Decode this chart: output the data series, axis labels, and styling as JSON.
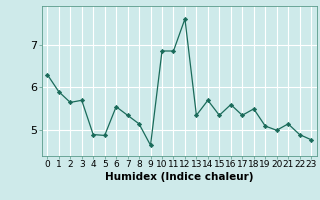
{
  "x": [
    0,
    1,
    2,
    3,
    4,
    5,
    6,
    7,
    8,
    9,
    10,
    11,
    12,
    13,
    14,
    15,
    16,
    17,
    18,
    19,
    20,
    21,
    22,
    23
  ],
  "y": [
    6.3,
    5.9,
    5.65,
    5.7,
    4.9,
    4.88,
    5.55,
    5.35,
    5.15,
    4.65,
    6.85,
    6.85,
    7.6,
    5.35,
    5.7,
    5.35,
    5.6,
    5.35,
    5.5,
    5.1,
    5.0,
    5.15,
    4.9,
    4.78
  ],
  "line_color": "#1a6b5a",
  "marker": "D",
  "marker_size": 2.2,
  "bg_color": "#ceeaea",
  "grid_color": "#ffffff",
  "xlabel": "Humidex (Indice chaleur)",
  "yticks": [
    5,
    6,
    7
  ],
  "xticks": [
    0,
    1,
    2,
    3,
    4,
    5,
    6,
    7,
    8,
    9,
    10,
    11,
    12,
    13,
    14,
    15,
    16,
    17,
    18,
    19,
    20,
    21,
    22,
    23
  ],
  "ylim": [
    4.4,
    7.9
  ],
  "xlim": [
    -0.5,
    23.5
  ],
  "xlabel_fontsize": 7.5,
  "tick_fontsize": 6.5,
  "ytick_fontsize": 8,
  "spine_color": "#5a9a8a",
  "linewidth": 0.9
}
